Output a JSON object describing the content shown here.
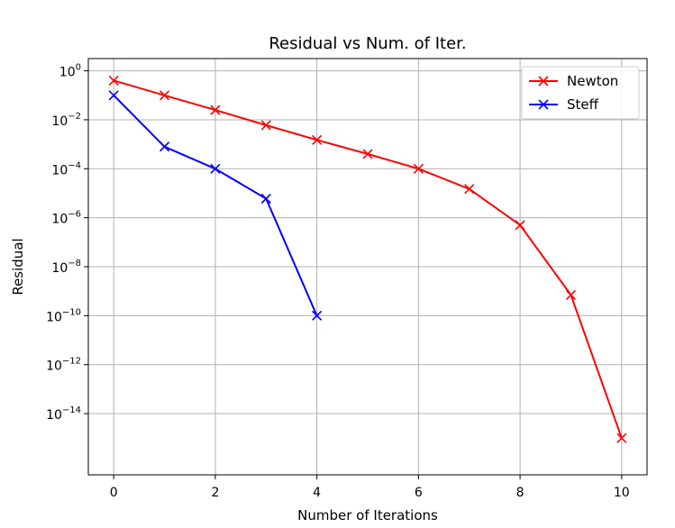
{
  "chart_data": {
    "type": "line",
    "title": "Residual vs Num. of Iter.",
    "xlabel": "Number of Iterations",
    "ylabel": "Residual",
    "yscale": "log",
    "xlim": [
      -0.5,
      10.5
    ],
    "ylim_exponent": [
      -16.5,
      0.5
    ],
    "xticks": [
      0,
      2,
      4,
      6,
      8,
      10
    ],
    "yticks_base": "10",
    "yticks_exponents": [
      "0",
      "−2",
      "−4",
      "−6",
      "−8",
      "−10",
      "−12",
      "−14"
    ],
    "ytick_exponent_values": [
      0,
      -2,
      -4,
      -6,
      -8,
      -10,
      -12,
      -14
    ],
    "grid": true,
    "legend_position": "top-right",
    "marker": "x",
    "series": [
      {
        "name": "Newton",
        "color": "#ff0000",
        "x": [
          0,
          1,
          2,
          3,
          4,
          5,
          6,
          7,
          8,
          9,
          10
        ],
        "y": [
          0.4,
          0.1,
          0.025,
          0.006,
          0.0015,
          0.0004,
          0.0001,
          1.5e-05,
          5e-07,
          7e-10,
          1e-15
        ]
      },
      {
        "name": "Steff",
        "color": "#0000ff",
        "x": [
          0,
          1,
          2,
          3,
          4
        ],
        "y": [
          0.1,
          0.0008,
          0.0001,
          6e-06,
          1e-10
        ]
      }
    ]
  }
}
